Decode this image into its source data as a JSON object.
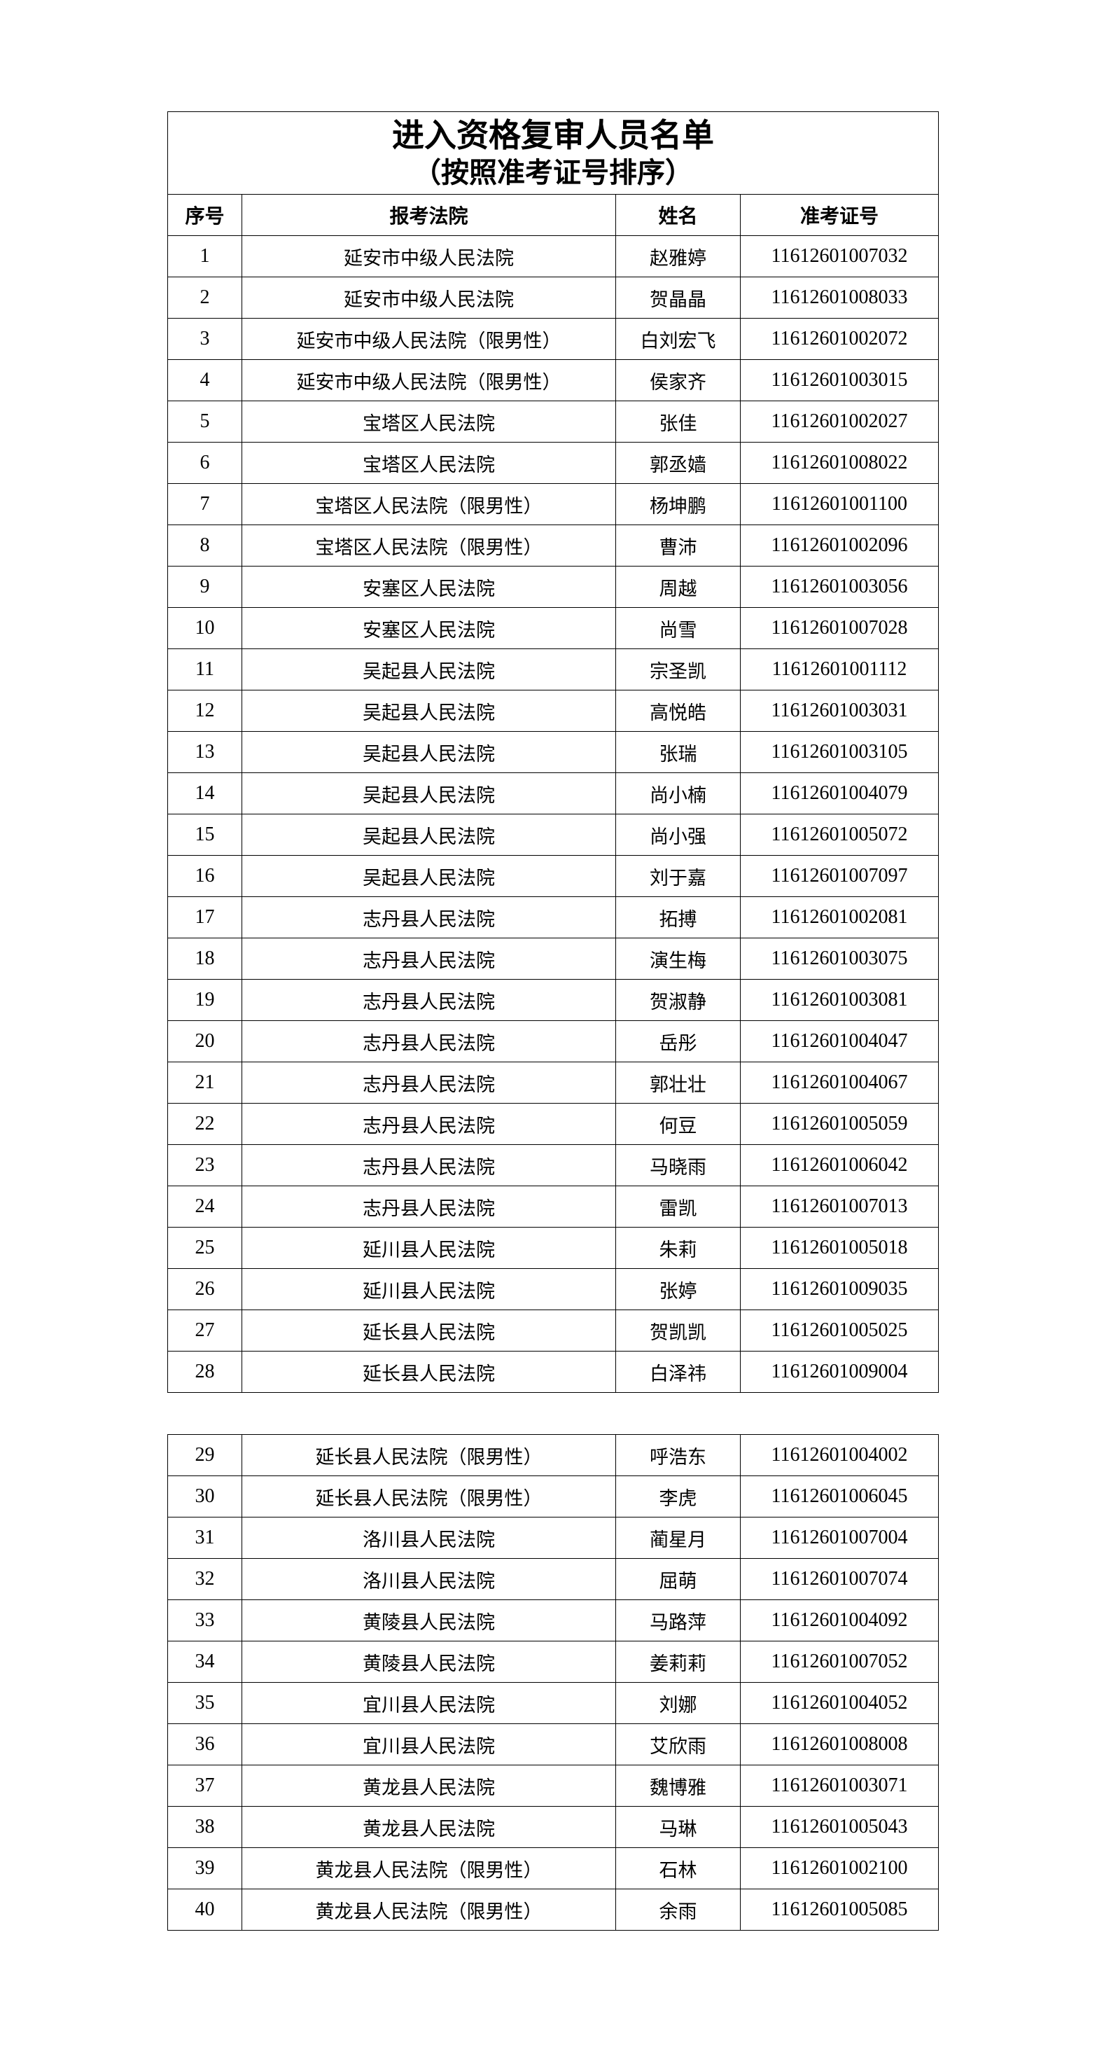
{
  "title": "进入资格复审人员名单",
  "subtitle": "（按照准考证号排序）",
  "headers": [
    "序号",
    "报考法院",
    "姓名",
    "准考证号"
  ],
  "rows": [
    [
      "1",
      "延安市中级人民法院",
      "赵雅婷",
      "11612601007032"
    ],
    [
      "2",
      "延安市中级人民法院",
      "贺晶晶",
      "11612601008033"
    ],
    [
      "3",
      "延安市中级人民法院（限男性）",
      "白刘宏飞",
      "11612601002072"
    ],
    [
      "4",
      "延安市中级人民法院（限男性）",
      "侯家齐",
      "11612601003015"
    ],
    [
      "5",
      "宝塔区人民法院",
      "张佳",
      "11612601002027"
    ],
    [
      "6",
      "宝塔区人民法院",
      "郭丞嫱",
      "11612601008022"
    ],
    [
      "7",
      "宝塔区人民法院（限男性）",
      "杨坤鹏",
      "11612601001100"
    ],
    [
      "8",
      "宝塔区人民法院（限男性）",
      "曹沛",
      "11612601002096"
    ],
    [
      "9",
      "安塞区人民法院",
      "周越",
      "11612601003056"
    ],
    [
      "10",
      "安塞区人民法院",
      "尚雪",
      "11612601007028"
    ],
    [
      "11",
      "吴起县人民法院",
      "宗圣凯",
      "11612601001112"
    ],
    [
      "12",
      "吴起县人民法院",
      "高悦皓",
      "11612601003031"
    ],
    [
      "13",
      "吴起县人民法院",
      "张瑞",
      "11612601003105"
    ],
    [
      "14",
      "吴起县人民法院",
      "尚小楠",
      "11612601004079"
    ],
    [
      "15",
      "吴起县人民法院",
      "尚小强",
      "11612601005072"
    ],
    [
      "16",
      "吴起县人民法院",
      "刘于嘉",
      "11612601007097"
    ],
    [
      "17",
      "志丹县人民法院",
      "拓搏",
      "11612601002081"
    ],
    [
      "18",
      "志丹县人民法院",
      "演生梅",
      "11612601003075"
    ],
    [
      "19",
      "志丹县人民法院",
      "贺淑静",
      "11612601003081"
    ],
    [
      "20",
      "志丹县人民法院",
      "岳彤",
      "11612601004047"
    ],
    [
      "21",
      "志丹县人民法院",
      "郭壮壮",
      "11612601004067"
    ],
    [
      "22",
      "志丹县人民法院",
      "何豆",
      "11612601005059"
    ],
    [
      "23",
      "志丹县人民法院",
      "马晓雨",
      "11612601006042"
    ],
    [
      "24",
      "志丹县人民法院",
      "雷凯",
      "11612601007013"
    ],
    [
      "25",
      "延川县人民法院",
      "朱莉",
      "11612601005018"
    ],
    [
      "26",
      "延川县人民法院",
      "张婷",
      "11612601009035"
    ],
    [
      "27",
      "延长县人民法院",
      "贺凯凯",
      "11612601005025"
    ],
    [
      "28",
      "延长县人民法院",
      "白泽祎",
      "11612601009004"
    ],
    [
      "29",
      "延长县人民法院（限男性）",
      "呼浩东",
      "11612601004002"
    ],
    [
      "30",
      "延长县人民法院（限男性）",
      "李虎",
      "11612601006045"
    ],
    [
      "31",
      "洛川县人民法院",
      "蔺星月",
      "11612601007004"
    ],
    [
      "32",
      "洛川县人民法院",
      "屈萌",
      "11612601007074"
    ],
    [
      "33",
      "黄陵县人民法院",
      "马路萍",
      "11612601004092"
    ],
    [
      "34",
      "黄陵县人民法院",
      "姜莉莉",
      "11612601007052"
    ],
    [
      "35",
      "宜川县人民法院",
      "刘娜",
      "11612601004052"
    ],
    [
      "36",
      "宜川县人民法院",
      "艾欣雨",
      "11612601008008"
    ],
    [
      "37",
      "黄龙县人民法院",
      "魏博雅",
      "11612601003071"
    ],
    [
      "38",
      "黄龙县人民法院",
      "马琳",
      "11612601005043"
    ],
    [
      "39",
      "黄龙县人民法院（限男性）",
      "石林",
      "11612601002100"
    ],
    [
      "40",
      "黄龙县人民法院（限男性）",
      "余雨",
      "11612601005085"
    ]
  ]
}
